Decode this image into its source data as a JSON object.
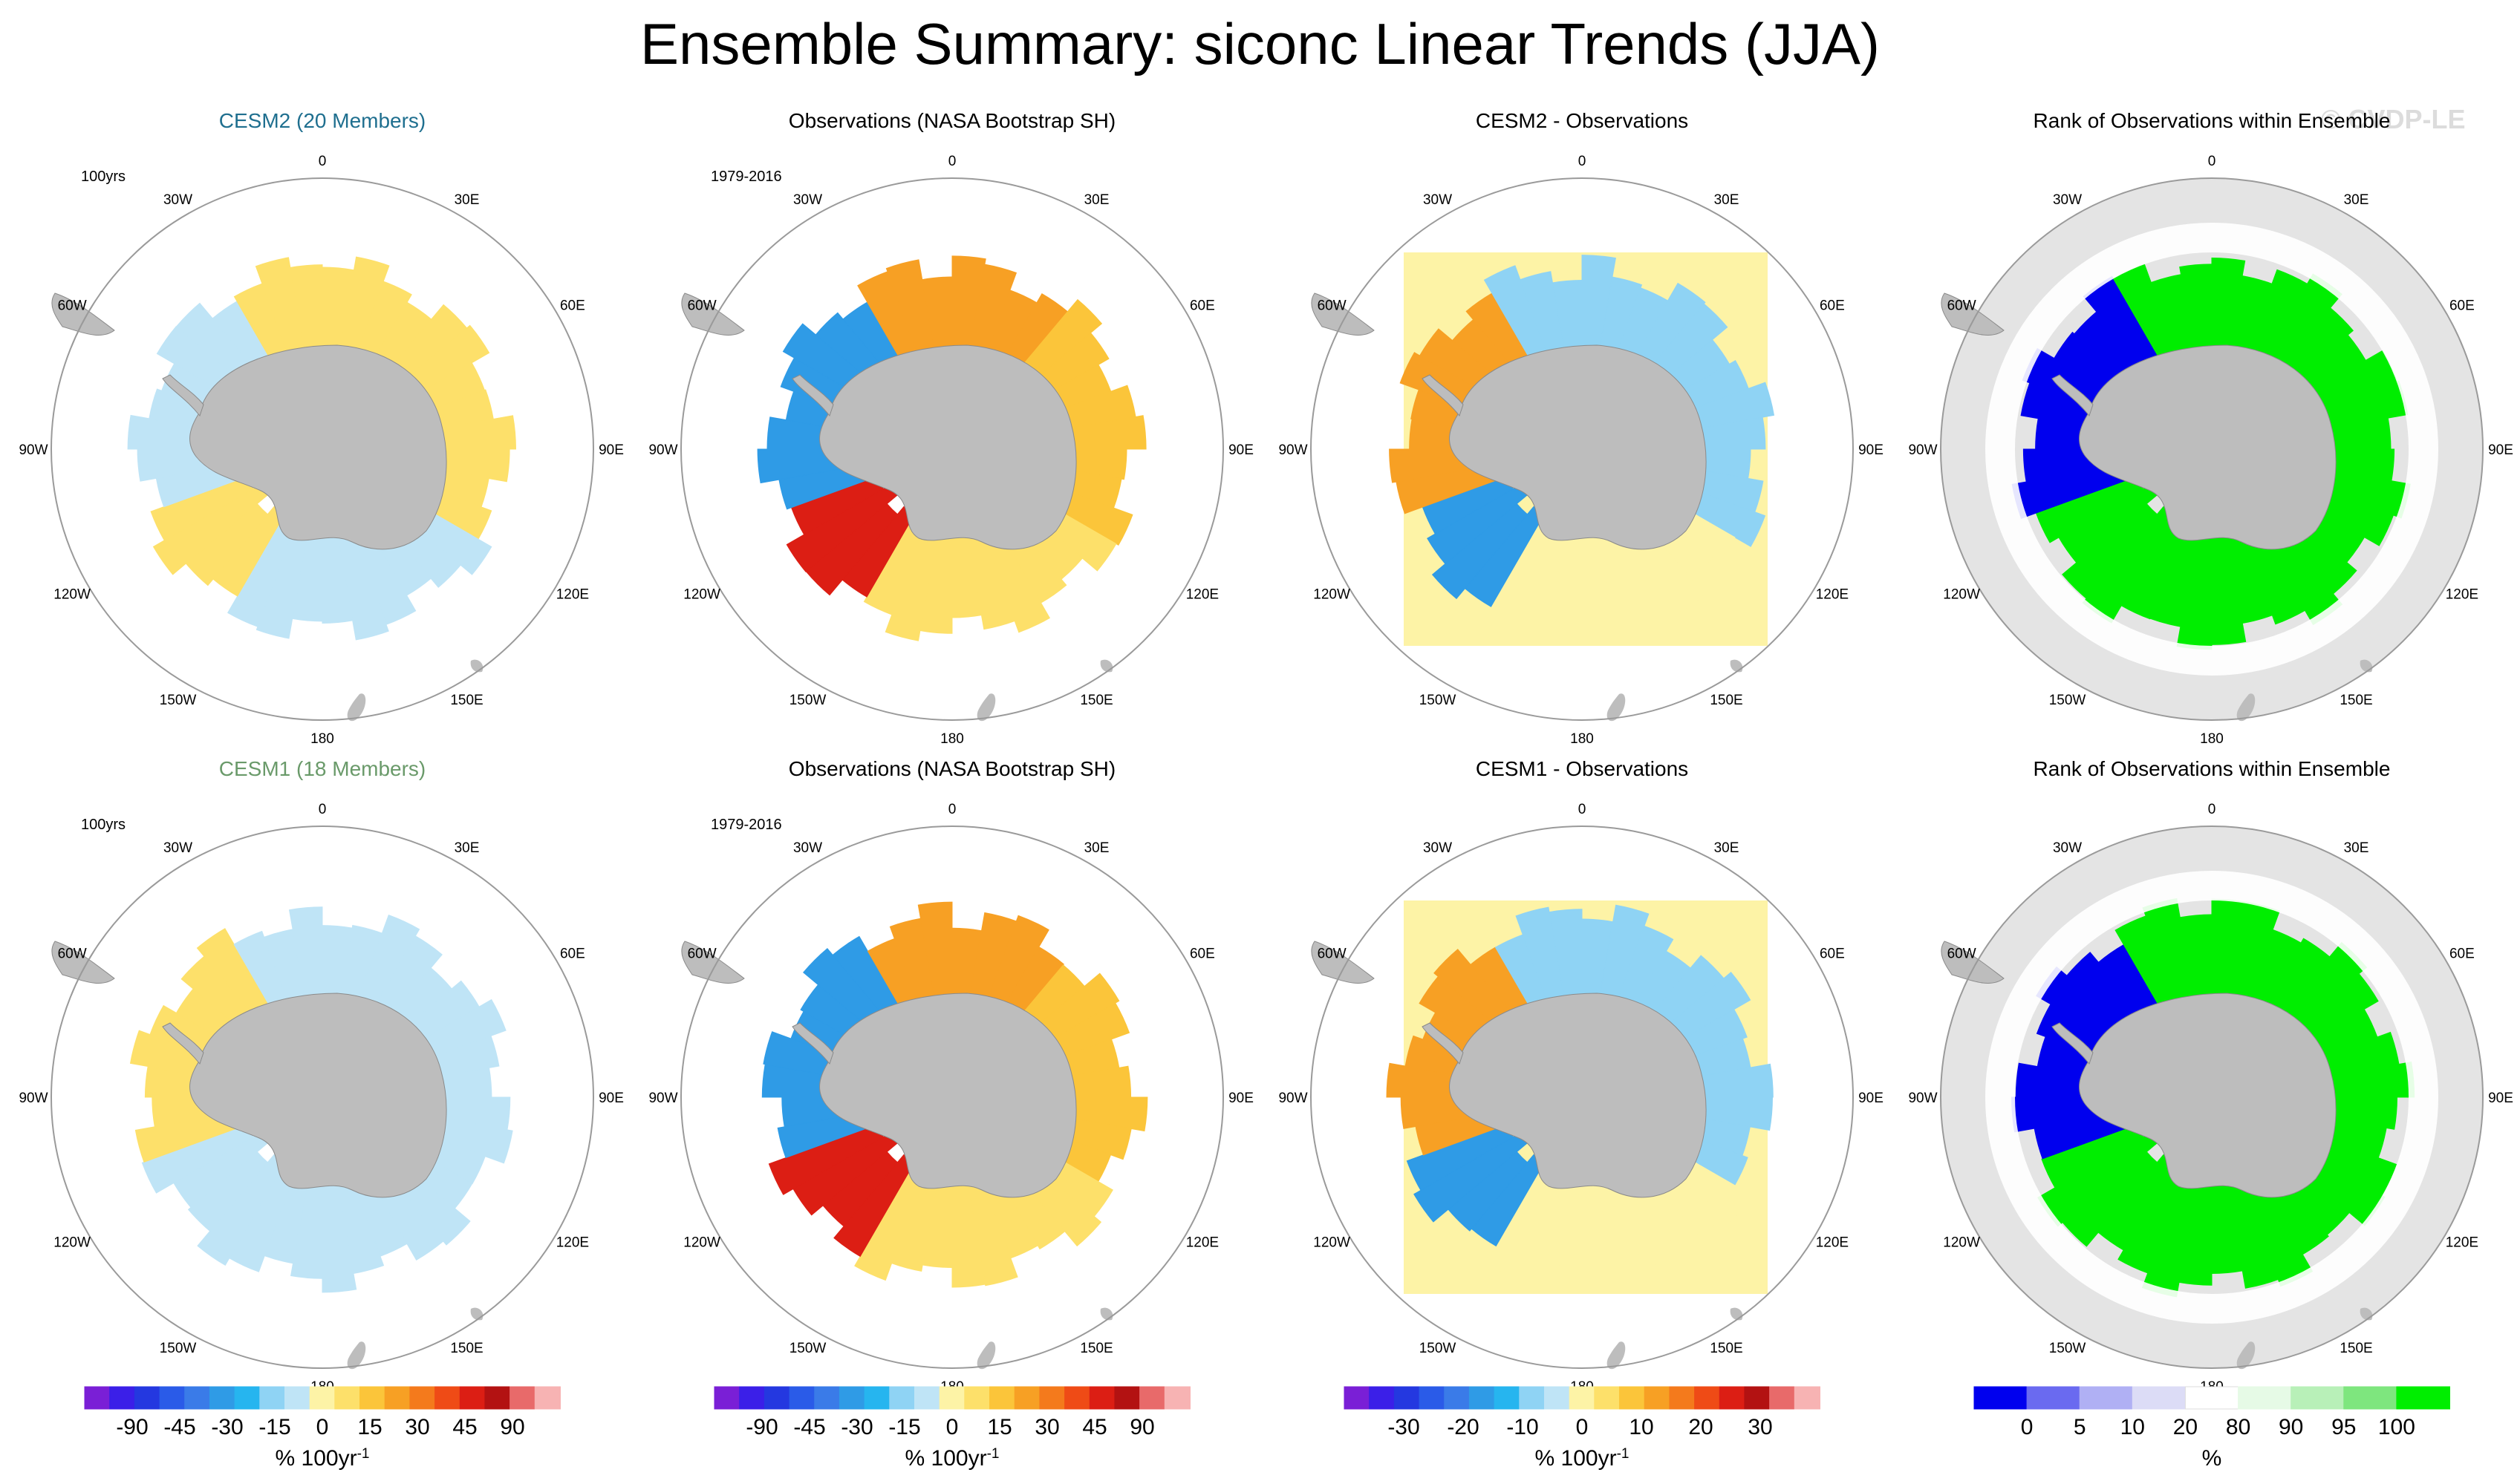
{
  "title": "Ensemble Summary: siconc Linear Trends (JJA)",
  "watermark": "© CVDP-LE",
  "colors": {
    "land": "#bdbdbd",
    "circle": "#9a9a9a",
    "cesm2_title": "#1f6f8f",
    "cesm1_title": "#6a9a6a",
    "diverging": [
      "#7a1fd6",
      "#3b1fe8",
      "#2438e0",
      "#2a5be8",
      "#3a7be8",
      "#2f9be6",
      "#26b5ef",
      "#8fd3f4",
      "#bfe4f6",
      "#fdf3a6",
      "#fde06a",
      "#fbc53a",
      "#f7a024",
      "#f47a1c",
      "#ef4b16",
      "#dc1e14",
      "#b31212",
      "#e86a6a",
      "#f7b3b3"
    ],
    "rank": [
      "#0000ee",
      "#6a6af0",
      "#b0b0f4",
      "#dcdcf6",
      "#ffffff",
      "#e6fae6",
      "#b8f0b8",
      "#7ee67e",
      "#00ee00"
    ]
  },
  "chart_data": [
    {
      "type": "map-panel",
      "row": 1,
      "title": "CESM2 (20 Members)",
      "title_color": "cesm2",
      "period_label": "100yrs",
      "field": "ensemble-mean siconc linear trend",
      "lon_labels": [
        "0",
        "30E",
        "60E",
        "90E",
        "120E",
        "150E",
        "180",
        "150W",
        "120W",
        "90W",
        "60W",
        "30W"
      ],
      "trend_by_sector": {
        "Weddell": 15,
        "Ross": 15,
        "Indian": 10,
        "Pacific": -10,
        "Amundsen-Bellingshausen": -10
      }
    },
    {
      "type": "map-panel",
      "row": 1,
      "title": "Observations (NASA Bootstrap SH)",
      "period_label": "1979-2016",
      "field": "observed siconc linear trend",
      "lon_labels": [
        "0",
        "30E",
        "60E",
        "90E",
        "120E",
        "150E",
        "180",
        "150W",
        "120W",
        "90W",
        "60W",
        "30W"
      ],
      "trend_by_sector": {
        "Weddell": 30,
        "Ross": 60,
        "Indian": 20,
        "Pacific": 15,
        "Amundsen-Bellingshausen": -30
      }
    },
    {
      "type": "map-panel",
      "row": 1,
      "title": "CESM2 - Observations",
      "field": "ensemble mean minus observations",
      "lon_labels": [
        "0",
        "30E",
        "60E",
        "90E",
        "120E",
        "150E",
        "180",
        "150W",
        "120W",
        "90W",
        "60W",
        "30W"
      ],
      "trend_by_sector": {
        "Weddell": -20,
        "Ross": -35,
        "Indian": -15,
        "Pacific": 0,
        "Amundsen-Bellingshausen": 30
      }
    },
    {
      "type": "map-panel",
      "row": 1,
      "title": "Rank of Observations within Ensemble",
      "field": "rank of observations (%)",
      "lon_labels": [
        "0",
        "30E",
        "60E",
        "90E",
        "120E",
        "150E",
        "180",
        "150W",
        "120W",
        "90W",
        "60W",
        "30W"
      ],
      "rank_by_sector": {
        "Weddell": 100,
        "Ross": 100,
        "Indian": 100,
        "Pacific": 100,
        "Amundsen-Bellingshausen": 0
      }
    },
    {
      "type": "map-panel",
      "row": 2,
      "title": "CESM1 (18 Members)",
      "title_color": "cesm1",
      "period_label": "100yrs",
      "field": "ensemble-mean siconc linear trend",
      "lon_labels": [
        "0",
        "30E",
        "60E",
        "90E",
        "120E",
        "150E",
        "180",
        "150W",
        "120W",
        "90W",
        "60W",
        "30W"
      ],
      "trend_by_sector": {
        "Weddell": -10,
        "Ross": -10,
        "Indian": -10,
        "Pacific": -10,
        "Amundsen-Bellingshausen": 10
      }
    },
    {
      "type": "map-panel",
      "row": 2,
      "title": "Observations (NASA Bootstrap SH)",
      "period_label": "1979-2016",
      "field": "observed siconc linear trend",
      "lon_labels": [
        "0",
        "30E",
        "60E",
        "90E",
        "120E",
        "150E",
        "180",
        "150W",
        "120W",
        "90W",
        "60W",
        "30W"
      ],
      "trend_by_sector": {
        "Weddell": 30,
        "Ross": 60,
        "Indian": 20,
        "Pacific": 15,
        "Amundsen-Bellingshausen": -30
      }
    },
    {
      "type": "map-panel",
      "row": 2,
      "title": "CESM1 - Observations",
      "field": "ensemble mean minus observations",
      "lon_labels": [
        "0",
        "30E",
        "60E",
        "90E",
        "120E",
        "150E",
        "180",
        "150W",
        "120W",
        "90W",
        "60W",
        "30W"
      ],
      "trend_by_sector": {
        "Weddell": -20,
        "Ross": -35,
        "Indian": -15,
        "Pacific": 0,
        "Amundsen-Bellingshausen": 30
      }
    },
    {
      "type": "map-panel",
      "row": 2,
      "title": "Rank of Observations within Ensemble",
      "field": "rank of observations (%)",
      "lon_labels": [
        "0",
        "30E",
        "60E",
        "90E",
        "120E",
        "150E",
        "180",
        "150W",
        "120W",
        "90W",
        "60W",
        "30W"
      ],
      "rank_by_sector": {
        "Weddell": 100,
        "Ross": 100,
        "Indian": 100,
        "Pacific": 100,
        "Amundsen-Bellingshausen": 0
      }
    }
  ],
  "colorbars": [
    {
      "name": "trend",
      "palette": "diverging",
      "ticks": [
        "-90",
        "-45",
        "-30",
        "-15",
        "0",
        "15",
        "30",
        "45",
        "90"
      ],
      "unit_main": "% 100yr",
      "unit_sup": "-1"
    },
    {
      "name": "trend",
      "palette": "diverging",
      "ticks": [
        "-90",
        "-45",
        "-30",
        "-15",
        "0",
        "15",
        "30",
        "45",
        "90"
      ],
      "unit_main": "% 100yr",
      "unit_sup": "-1"
    },
    {
      "name": "difference",
      "palette": "diverging",
      "ticks": [
        "-30",
        "-20",
        "-10",
        "0",
        "10",
        "20",
        "30"
      ],
      "unit_main": "% 100yr",
      "unit_sup": "-1"
    },
    {
      "name": "rank",
      "palette": "rank",
      "ticks": [
        "0",
        "5",
        "10",
        "20",
        "80",
        "90",
        "95",
        "100"
      ],
      "unit_main": "%",
      "unit_sup": ""
    }
  ]
}
